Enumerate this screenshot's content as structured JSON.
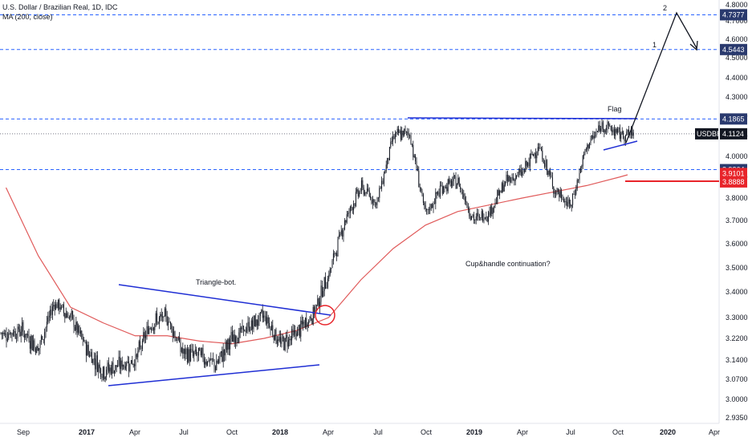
{
  "header": {
    "symbol_line": "U.S. Dollar / Brazilian Real, 1D, IDC",
    "ma_line": "MA (200, close)"
  },
  "chart_data": {
    "type": "candlestick",
    "symbol": "USDBRL",
    "y_axis": {
      "ticks": [
        "4.8000",
        "4.7000",
        "4.6000",
        "4.5000",
        "4.4000",
        "4.3000",
        "4.2000",
        "4.1000",
        "4.0000",
        "3.9000",
        "3.8000",
        "3.7000",
        "3.6000",
        "3.5000",
        "3.4000",
        "3.3000",
        "3.2200",
        "3.1400",
        "3.0700",
        "3.0000",
        "2.9350"
      ],
      "range": [
        2.92,
        4.83
      ]
    },
    "x_axis": {
      "ticks": [
        "Sep",
        "2017",
        "Apr",
        "Jul",
        "Oct",
        "2018",
        "Apr",
        "Jul",
        "Oct",
        "2019",
        "Apr",
        "Jul",
        "Oct",
        "2020",
        "Apr"
      ]
    },
    "price_levels": [
      {
        "value": 4.7377,
        "label": "4.7377",
        "style": "dashed",
        "color": "#2962ff"
      },
      {
        "value": 4.5443,
        "label": "4.5443",
        "style": "dashed",
        "color": "#2962ff"
      },
      {
        "value": 4.1865,
        "label": "4.1865",
        "style": "dashed",
        "color": "#2962ff"
      },
      {
        "value": 3.9364,
        "label": "3.9364",
        "style": "dashed",
        "color": "#2962ff"
      }
    ],
    "last_price": {
      "value": 4.1124,
      "label": "4.1124",
      "name": "USDBRL"
    },
    "ma_labels": [
      {
        "value": 3.9101,
        "label": "3.9101",
        "color": "#e8242a"
      },
      {
        "value": 3.8888,
        "label": "3.8888",
        "color": "#e8242a"
      }
    ],
    "annotations": {
      "triangle": "Triangle-bot.",
      "cup": "Cup&handle continuation?",
      "flag": "Flag",
      "target1": "1",
      "target2": "2"
    },
    "price_series": [
      {
        "t": "2016-08",
        "v": 3.24
      },
      {
        "t": "2016-09",
        "v": 3.25
      },
      {
        "t": "2016-10",
        "v": 3.18
      },
      {
        "t": "2016-11",
        "v": 3.36
      },
      {
        "t": "2016-12",
        "v": 3.3
      },
      {
        "t": "2017-01",
        "v": 3.18
      },
      {
        "t": "2017-02",
        "v": 3.1
      },
      {
        "t": "2017-03",
        "v": 3.12
      },
      {
        "t": "2017-04",
        "v": 3.14
      },
      {
        "t": "2017-05",
        "v": 3.28
      },
      {
        "t": "2017-06",
        "v": 3.3
      },
      {
        "t": "2017-07",
        "v": 3.16
      },
      {
        "t": "2017-08",
        "v": 3.16
      },
      {
        "t": "2017-09",
        "v": 3.12
      },
      {
        "t": "2017-10",
        "v": 3.22
      },
      {
        "t": "2017-11",
        "v": 3.26
      },
      {
        "t": "2017-12",
        "v": 3.31
      },
      {
        "t": "2018-01",
        "v": 3.2
      },
      {
        "t": "2018-02",
        "v": 3.24
      },
      {
        "t": "2018-03",
        "v": 3.31
      },
      {
        "t": "2018-04",
        "v": 3.47
      },
      {
        "t": "2018-05",
        "v": 3.7
      },
      {
        "t": "2018-06",
        "v": 3.85
      },
      {
        "t": "2018-07",
        "v": 3.78
      },
      {
        "t": "2018-08",
        "v": 4.1
      },
      {
        "t": "2018-09",
        "v": 4.12
      },
      {
        "t": "2018-10",
        "v": 3.72
      },
      {
        "t": "2018-11",
        "v": 3.85
      },
      {
        "t": "2018-12",
        "v": 3.88
      },
      {
        "t": "2019-01",
        "v": 3.7
      },
      {
        "t": "2019-02",
        "v": 3.74
      },
      {
        "t": "2019-03",
        "v": 3.88
      },
      {
        "t": "2019-04",
        "v": 3.92
      },
      {
        "t": "2019-05",
        "v": 4.05
      },
      {
        "t": "2019-06",
        "v": 3.84
      },
      {
        "t": "2019-07",
        "v": 3.76
      },
      {
        "t": "2019-08",
        "v": 4.05
      },
      {
        "t": "2019-09",
        "v": 4.16
      },
      {
        "t": "2019-10",
        "v": 4.11
      }
    ],
    "ma_series": [
      {
        "t": "2016-08",
        "v": 3.85
      },
      {
        "t": "2016-10",
        "v": 3.55
      },
      {
        "t": "2016-12",
        "v": 3.34
      },
      {
        "t": "2017-02",
        "v": 3.28
      },
      {
        "t": "2017-04",
        "v": 3.23
      },
      {
        "t": "2017-06",
        "v": 3.23
      },
      {
        "t": "2017-08",
        "v": 3.21
      },
      {
        "t": "2017-10",
        "v": 3.2
      },
      {
        "t": "2017-12",
        "v": 3.22
      },
      {
        "t": "2018-02",
        "v": 3.25
      },
      {
        "t": "2018-04",
        "v": 3.3
      },
      {
        "t": "2018-06",
        "v": 3.45
      },
      {
        "t": "2018-08",
        "v": 3.58
      },
      {
        "t": "2018-10",
        "v": 3.68
      },
      {
        "t": "2018-12",
        "v": 3.74
      },
      {
        "t": "2019-02",
        "v": 3.77
      },
      {
        "t": "2019-04",
        "v": 3.8
      },
      {
        "t": "2019-06",
        "v": 3.83
      },
      {
        "t": "2019-08",
        "v": 3.86
      },
      {
        "t": "2019-10",
        "v": 3.9
      }
    ]
  }
}
